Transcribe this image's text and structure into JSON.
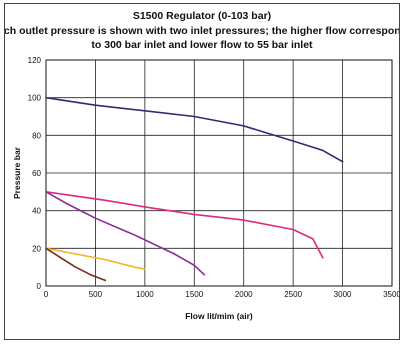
{
  "chart_data": {
    "type": "line",
    "title": "S1500 Regulator (0-103 bar)",
    "subtitle_lines": [
      "Each outlet pressure is shown with two inlet pressures; the higher flow corresponds",
      "to 300 bar inlet and lower flow to 55 bar inlet"
    ],
    "xlabel": "Flow lit/mim (air)",
    "ylabel": "Pressure bar",
    "xlim": [
      0,
      3500
    ],
    "ylim": [
      0,
      120
    ],
    "x_ticks": [
      0,
      500,
      1000,
      1500,
      2000,
      2500,
      3000,
      3500
    ],
    "y_ticks": [
      0,
      20,
      40,
      60,
      80,
      100,
      120
    ],
    "grid": true,
    "legend": "none",
    "series": [
      {
        "color": "#2e2a78",
        "points": [
          [
            0,
            100
          ],
          [
            500,
            96
          ],
          [
            1000,
            93
          ],
          [
            1500,
            90
          ],
          [
            2000,
            85
          ],
          [
            2500,
            77
          ],
          [
            2800,
            72
          ],
          [
            3000,
            66
          ]
        ]
      },
      {
        "color": "#e0287c",
        "points": [
          [
            0,
            50
          ],
          [
            200,
            48.5
          ],
          [
            600,
            45.5
          ],
          [
            1000,
            42
          ],
          [
            1500,
            38
          ],
          [
            2000,
            35
          ],
          [
            2500,
            30
          ],
          [
            2700,
            25
          ],
          [
            2800,
            15
          ]
        ]
      },
      {
        "color": "#8a2a9a",
        "points": [
          [
            0,
            50
          ],
          [
            200,
            44
          ],
          [
            500,
            36
          ],
          [
            900,
            27
          ],
          [
            1300,
            17
          ],
          [
            1500,
            11
          ],
          [
            1600,
            6
          ]
        ]
      },
      {
        "color": "#f5b41c",
        "points": [
          [
            0,
            20
          ],
          [
            300,
            17
          ],
          [
            600,
            14
          ],
          [
            900,
            10
          ],
          [
            1000,
            9
          ]
        ]
      },
      {
        "color": "#7a2a1a",
        "points": [
          [
            0,
            20
          ],
          [
            150,
            15
          ],
          [
            300,
            10
          ],
          [
            450,
            6
          ],
          [
            600,
            3
          ]
        ]
      }
    ]
  }
}
